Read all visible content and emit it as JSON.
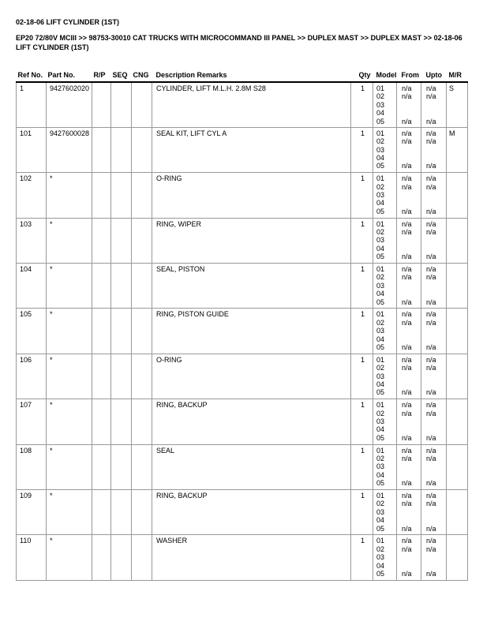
{
  "page": {
    "title": "02-18-06 LIFT CYLINDER (1ST)",
    "breadcrumb_lines": [
      "EP20 72/80V MCIII >> 98753-30010 CAT TRUCKS WITH MICROCOMMAND III PANEL >> DUPLEX MAST >> DUPLEX MAST >> 02-18-06",
      "LIFT CYLINDER (1ST)"
    ]
  },
  "colors": {
    "text": "#000000",
    "table_border": "#999999",
    "header_rule": "#000000",
    "background": "#ffffff"
  },
  "table": {
    "headers": [
      "Ref No.",
      "Part No.",
      "R/P",
      "SEQ",
      "CNG",
      "Description Remarks",
      "Qty",
      "Model",
      "From",
      "Upto",
      "M/R"
    ],
    "rows": [
      {
        "ref_no": "1",
        "part_no": "9427602020",
        "rp": "",
        "seq": "",
        "cng": "",
        "description": "CYLINDER, LIFT M.L.H. 2.8M S28",
        "qty": "1",
        "mr": "S",
        "models": [
          {
            "model": "01",
            "from": "n/a",
            "upto": "n/a"
          },
          {
            "model": "02",
            "from": "n/a",
            "upto": "n/a"
          },
          {
            "model": "03",
            "from": "",
            "upto": ""
          },
          {
            "model": "04",
            "from": "",
            "upto": ""
          },
          {
            "model": "05",
            "from": "n/a",
            "upto": "n/a"
          }
        ]
      },
      {
        "ref_no": "101",
        "part_no": "9427600028",
        "rp": "",
        "seq": "",
        "cng": "",
        "description": "SEAL KIT, LIFT CYL A",
        "qty": "1",
        "mr": "M",
        "models": [
          {
            "model": "01",
            "from": "n/a",
            "upto": "n/a"
          },
          {
            "model": "02",
            "from": "n/a",
            "upto": "n/a"
          },
          {
            "model": "03",
            "from": "",
            "upto": ""
          },
          {
            "model": "04",
            "from": "",
            "upto": ""
          },
          {
            "model": "05",
            "from": "n/a",
            "upto": "n/a"
          }
        ]
      },
      {
        "ref_no": "102",
        "part_no": "*",
        "rp": "",
        "seq": "",
        "cng": "",
        "description": "O-RING",
        "qty": "1",
        "mr": "",
        "models": [
          {
            "model": "01",
            "from": "n/a",
            "upto": "n/a"
          },
          {
            "model": "02",
            "from": "n/a",
            "upto": "n/a"
          },
          {
            "model": "03",
            "from": "",
            "upto": ""
          },
          {
            "model": "04",
            "from": "",
            "upto": ""
          },
          {
            "model": "05",
            "from": "n/a",
            "upto": "n/a"
          }
        ]
      },
      {
        "ref_no": "103",
        "part_no": "*",
        "rp": "",
        "seq": "",
        "cng": "",
        "description": "RING, WIPER",
        "qty": "1",
        "mr": "",
        "models": [
          {
            "model": "01",
            "from": "n/a",
            "upto": "n/a"
          },
          {
            "model": "02",
            "from": "n/a",
            "upto": "n/a"
          },
          {
            "model": "03",
            "from": "",
            "upto": ""
          },
          {
            "model": "04",
            "from": "",
            "upto": ""
          },
          {
            "model": "05",
            "from": "n/a",
            "upto": "n/a"
          }
        ]
      },
      {
        "ref_no": "104",
        "part_no": "*",
        "rp": "",
        "seq": "",
        "cng": "",
        "description": "SEAL, PISTON",
        "qty": "1",
        "mr": "",
        "models": [
          {
            "model": "01",
            "from": "n/a",
            "upto": "n/a"
          },
          {
            "model": "02",
            "from": "n/a",
            "upto": "n/a"
          },
          {
            "model": "03",
            "from": "",
            "upto": ""
          },
          {
            "model": "04",
            "from": "",
            "upto": ""
          },
          {
            "model": "05",
            "from": "n/a",
            "upto": "n/a"
          }
        ]
      },
      {
        "ref_no": "105",
        "part_no": "*",
        "rp": "",
        "seq": "",
        "cng": "",
        "description": "RING, PISTON GUIDE",
        "qty": "1",
        "mr": "",
        "models": [
          {
            "model": "01",
            "from": "n/a",
            "upto": "n/a"
          },
          {
            "model": "02",
            "from": "n/a",
            "upto": "n/a"
          },
          {
            "model": "03",
            "from": "",
            "upto": ""
          },
          {
            "model": "04",
            "from": "",
            "upto": ""
          },
          {
            "model": "05",
            "from": "n/a",
            "upto": "n/a"
          }
        ]
      },
      {
        "ref_no": "106",
        "part_no": "*",
        "rp": "",
        "seq": "",
        "cng": "",
        "description": "O-RING",
        "qty": "1",
        "mr": "",
        "models": [
          {
            "model": "01",
            "from": "n/a",
            "upto": "n/a"
          },
          {
            "model": "02",
            "from": "n/a",
            "upto": "n/a"
          },
          {
            "model": "03",
            "from": "",
            "upto": ""
          },
          {
            "model": "04",
            "from": "",
            "upto": ""
          },
          {
            "model": "05",
            "from": "n/a",
            "upto": "n/a"
          }
        ]
      },
      {
        "ref_no": "107",
        "part_no": "*",
        "rp": "",
        "seq": "",
        "cng": "",
        "description": "RING, BACKUP",
        "qty": "1",
        "mr": "",
        "models": [
          {
            "model": "01",
            "from": "n/a",
            "upto": "n/a"
          },
          {
            "model": "02",
            "from": "n/a",
            "upto": "n/a"
          },
          {
            "model": "03",
            "from": "",
            "upto": ""
          },
          {
            "model": "04",
            "from": "",
            "upto": ""
          },
          {
            "model": "05",
            "from": "n/a",
            "upto": "n/a"
          }
        ]
      },
      {
        "ref_no": "108",
        "part_no": "*",
        "rp": "",
        "seq": "",
        "cng": "",
        "description": "SEAL",
        "qty": "1",
        "mr": "",
        "models": [
          {
            "model": "01",
            "from": "n/a",
            "upto": "n/a"
          },
          {
            "model": "02",
            "from": "n/a",
            "upto": "n/a"
          },
          {
            "model": "03",
            "from": "",
            "upto": ""
          },
          {
            "model": "04",
            "from": "",
            "upto": ""
          },
          {
            "model": "05",
            "from": "n/a",
            "upto": "n/a"
          }
        ]
      },
      {
        "ref_no": "109",
        "part_no": "*",
        "rp": "",
        "seq": "",
        "cng": "",
        "description": "RING, BACKUP",
        "qty": "1",
        "mr": "",
        "models": [
          {
            "model": "01",
            "from": "n/a",
            "upto": "n/a"
          },
          {
            "model": "02",
            "from": "n/a",
            "upto": "n/a"
          },
          {
            "model": "03",
            "from": "",
            "upto": ""
          },
          {
            "model": "04",
            "from": "",
            "upto": ""
          },
          {
            "model": "05",
            "from": "n/a",
            "upto": "n/a"
          }
        ]
      },
      {
        "ref_no": "110",
        "part_no": "*",
        "rp": "",
        "seq": "",
        "cng": "",
        "description": "WASHER",
        "qty": "1",
        "mr": "",
        "models": [
          {
            "model": "01",
            "from": "n/a",
            "upto": "n/a"
          },
          {
            "model": "02",
            "from": "n/a",
            "upto": "n/a"
          },
          {
            "model": "03",
            "from": "",
            "upto": ""
          },
          {
            "model": "04",
            "from": "",
            "upto": ""
          },
          {
            "model": "05",
            "from": "n/a",
            "upto": "n/a"
          }
        ]
      }
    ]
  }
}
